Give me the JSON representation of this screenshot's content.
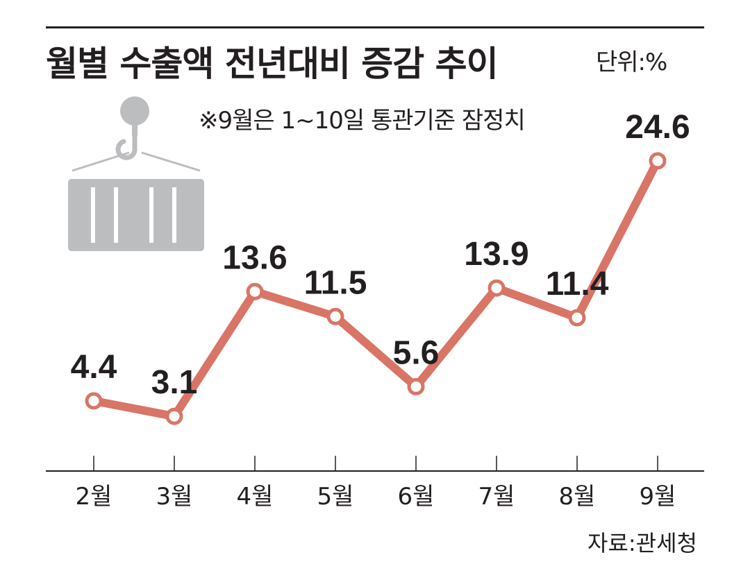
{
  "header": {
    "title": "월별 수출액 전년대비 증감 추이",
    "unit": "단위:%",
    "note": "※9월은 1~10일 통관기준 잠정치"
  },
  "footer": {
    "source": "자료:관세청"
  },
  "colors": {
    "line": "#d97566",
    "marker_fill": "#ffffff",
    "axis": "#231f20",
    "icon": "#bcbdbf",
    "text": "#231f20"
  },
  "icon": {
    "name": "shipping-container-crane-icon"
  },
  "chart_data": {
    "type": "line",
    "categories": [
      "2월",
      "3월",
      "4월",
      "5월",
      "6월",
      "7월",
      "8월",
      "9월"
    ],
    "values": [
      4.4,
      3.1,
      13.6,
      11.5,
      5.6,
      13.9,
      11.4,
      24.6
    ],
    "labels": [
      "4.4",
      "3.1",
      "13.6",
      "11.5",
      "5.6",
      "13.9",
      "11.4",
      "24.6"
    ],
    "title": "월별 수출액 전년대비 증감 추이",
    "unit": "%",
    "ylim": [
      -1.5,
      25
    ],
    "grid": false,
    "legend": "none"
  }
}
